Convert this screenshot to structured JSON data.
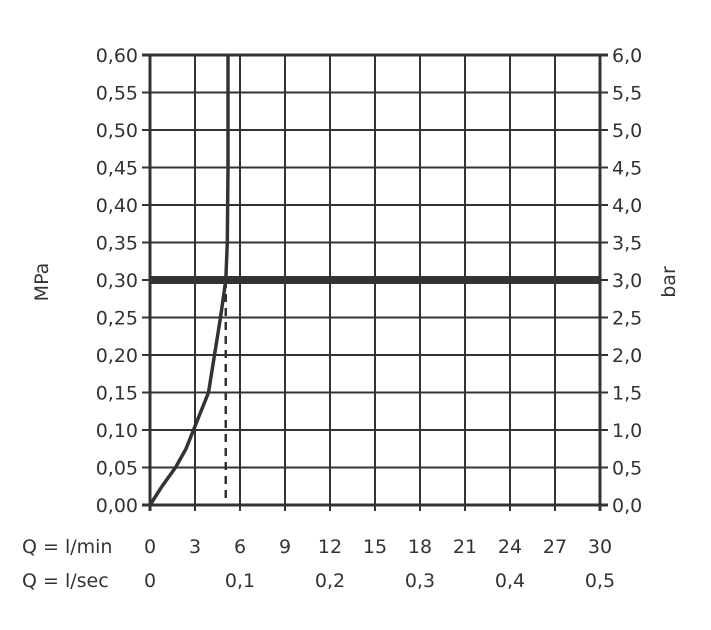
{
  "chart_data": {
    "type": "line",
    "xlabel": "Q = l/min",
    "xlabel_secondary": "Q = l/sec",
    "ylabel": "MPa",
    "ylabel_secondary": "bar",
    "xlim": [
      0,
      30
    ],
    "ylim": [
      0,
      0.6
    ],
    "grid": true,
    "x_ticks": [
      "0",
      "3",
      "6",
      "9",
      "12",
      "15",
      "18",
      "21",
      "24",
      "27",
      "30"
    ],
    "x_ticks_secondary": [
      {
        "at": 0,
        "label": "0"
      },
      {
        "at": 6,
        "label": "0,1"
      },
      {
        "at": 12,
        "label": "0,2"
      },
      {
        "at": 18,
        "label": "0,3"
      },
      {
        "at": 24,
        "label": "0,4"
      },
      {
        "at": 30,
        "label": "0,5"
      }
    ],
    "y_ticks": [
      "0,00",
      "0,05",
      "0,10",
      "0,15",
      "0,20",
      "0,25",
      "0,30",
      "0,35",
      "0,40",
      "0,45",
      "0,50",
      "0,55",
      "0,60"
    ],
    "y_ticks_secondary": [
      "0,0",
      "0,5",
      "1,0",
      "1,5",
      "2,0",
      "2,5",
      "3,0",
      "3,5",
      "4,0",
      "4,5",
      "5,0",
      "5,5",
      "6,0"
    ],
    "series": [
      {
        "x": [
          0,
          0.8,
          1.7,
          2.4,
          2.9,
          3.9,
          4.3,
          4.7,
          5.05,
          5.15,
          5.2,
          5.2
        ],
        "y": [
          0,
          0.025,
          0.05,
          0.075,
          0.1,
          0.15,
          0.2,
          0.25,
          0.3,
          0.35,
          0.45,
          0.6
        ]
      }
    ],
    "reference_line_y": 0.3,
    "reference_line_x": 5.05,
    "color": "#333333"
  }
}
